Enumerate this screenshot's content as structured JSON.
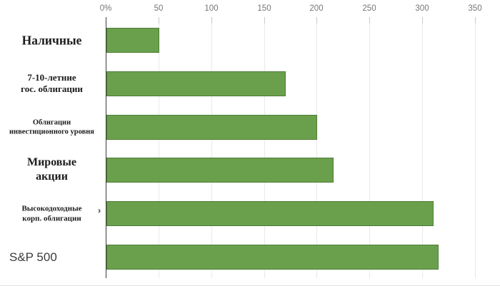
{
  "chart_data": {
    "type": "bar",
    "orientation": "horizontal",
    "title": "",
    "xlabel": "",
    "ylabel": "",
    "categories": [
      "Наличные",
      "7-10-летние\nгос. облигации",
      "Облигации\nинвестиционного уровня",
      "Мировые\nакции",
      "Высокодоходные\nкорп. облигации",
      "S&P 500"
    ],
    "values": [
      50,
      170,
      200,
      215,
      310,
      315
    ],
    "xlim": [
      0,
      350
    ],
    "xtick_values": [
      0,
      50,
      100,
      150,
      200,
      250,
      300,
      350
    ],
    "xtick_labels": [
      "0%",
      "50",
      "100",
      "150",
      "200",
      "250",
      "300",
      "350"
    ],
    "grid": true,
    "legend": false,
    "axis_position": "top",
    "bar_color": "#6aa04c",
    "bar_border_color": "#4f7d36",
    "gridline_color": "#e9e9e9",
    "axis_line_color": "#3c3c3c",
    "tick_label_color": "#757575"
  },
  "misc": {
    "stray_glyph": "з"
  }
}
